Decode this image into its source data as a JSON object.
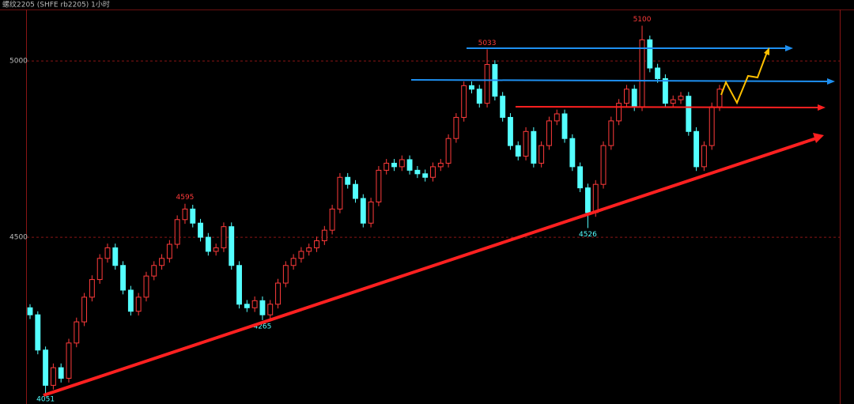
{
  "chart_data": {
    "type": "candlestick",
    "title": "螺纹2205 (SHFE rb2205) 1小时",
    "ylim": [
      4027,
      5146
    ],
    "yticks": [
      4500,
      5000
    ],
    "grid": true,
    "up_color": "#ff3b3b",
    "down_color": "#54ffff",
    "open": [
      4300,
      4280,
      4180,
      4080,
      4130,
      4100,
      4200,
      4260,
      4330,
      4380,
      4440,
      4470,
      4420,
      4350,
      4290,
      4330,
      4390,
      4420,
      4440,
      4480,
      4550,
      4580,
      4540,
      4500,
      4460,
      4470,
      4530,
      4420,
      4310,
      4300,
      4320,
      4280,
      4310,
      4370,
      4420,
      4440,
      4460,
      4470,
      4490,
      4520,
      4580,
      4670,
      4650,
      4610,
      4540,
      4600,
      4690,
      4710,
      4700,
      4720,
      4690,
      4680,
      4670,
      4700,
      4710,
      4780,
      4840,
      4930,
      4920,
      4880,
      4990,
      4900,
      4840,
      4760,
      4730,
      4800,
      4710,
      4760,
      4830,
      4850,
      4780,
      4700,
      4640,
      4570,
      4650,
      4760,
      4830,
      4880,
      4920,
      4870,
      5060,
      4980,
      4950,
      4880,
      4890,
      4900,
      4800,
      4700,
      4760,
      4870
    ],
    "high": [
      4310,
      4290,
      4190,
      4142,
      4142,
      4212,
      4272,
      4342,
      4392,
      4452,
      4482,
      4482,
      4432,
      4362,
      4342,
      4402,
      4432,
      4452,
      4492,
      4562,
      4595,
      4592,
      4552,
      4512,
      4482,
      4542,
      4542,
      4432,
      4322,
      4332,
      4332,
      4322,
      4382,
      4432,
      4452,
      4472,
      4482,
      4502,
      4532,
      4592,
      4682,
      4682,
      4662,
      4622,
      4612,
      4702,
      4722,
      4722,
      4732,
      4732,
      4702,
      4692,
      4712,
      4722,
      4792,
      4852,
      4942,
      4942,
      4932,
      5033,
      5002,
      4912,
      4852,
      4772,
      4812,
      4812,
      4772,
      4842,
      4862,
      4862,
      4792,
      4712,
      4652,
      4662,
      4772,
      4842,
      4892,
      4932,
      4932,
      5100,
      5072,
      4992,
      4962,
      4902,
      4912,
      4912,
      4812,
      4772,
      4882,
      4932
    ],
    "low": [
      4268,
      4168,
      4051,
      4068,
      4088,
      4088,
      4188,
      4248,
      4318,
      4368,
      4428,
      4408,
      4338,
      4278,
      4278,
      4318,
      4378,
      4408,
      4428,
      4468,
      4538,
      4528,
      4488,
      4448,
      4448,
      4458,
      4408,
      4298,
      4288,
      4288,
      4265,
      4268,
      4298,
      4358,
      4408,
      4428,
      4448,
      4458,
      4478,
      4508,
      4568,
      4638,
      4598,
      4528,
      4528,
      4588,
      4678,
      4688,
      4688,
      4678,
      4668,
      4658,
      4658,
      4688,
      4698,
      4768,
      4828,
      4908,
      4868,
      4868,
      4888,
      4828,
      4748,
      4718,
      4718,
      4698,
      4698,
      4748,
      4818,
      4768,
      4688,
      4628,
      4526,
      4558,
      4638,
      4748,
      4818,
      4868,
      4858,
      4858,
      4968,
      4938,
      4868,
      4868,
      4878,
      4788,
      4688,
      4688,
      4748,
      4858
    ],
    "close": [
      4280,
      4180,
      4080,
      4130,
      4100,
      4200,
      4260,
      4330,
      4380,
      4440,
      4470,
      4420,
      4350,
      4290,
      4330,
      4390,
      4420,
      4440,
      4480,
      4550,
      4580,
      4540,
      4500,
      4460,
      4470,
      4530,
      4420,
      4310,
      4300,
      4320,
      4280,
      4310,
      4370,
      4420,
      4440,
      4460,
      4470,
      4490,
      4520,
      4580,
      4670,
      4650,
      4610,
      4540,
      4600,
      4690,
      4710,
      4700,
      4720,
      4690,
      4680,
      4670,
      4700,
      4710,
      4780,
      4840,
      4930,
      4920,
      4880,
      4990,
      4900,
      4840,
      4760,
      4730,
      4800,
      4710,
      4760,
      4830,
      4850,
      4780,
      4700,
      4640,
      4570,
      4650,
      4760,
      4830,
      4880,
      4920,
      4870,
      5060,
      4980,
      4950,
      4880,
      4890,
      4900,
      4800,
      4700,
      4760,
      4870,
      4920
    ],
    "annotations": [
      {
        "index": 2,
        "value": 4051
      },
      {
        "index": 20,
        "value": 4595
      },
      {
        "index": 30,
        "value": 4265
      },
      {
        "index": 59,
        "value": 5033
      },
      {
        "index": 72,
        "value": 4526
      },
      {
        "index": 79,
        "value": 5100
      }
    ]
  }
}
